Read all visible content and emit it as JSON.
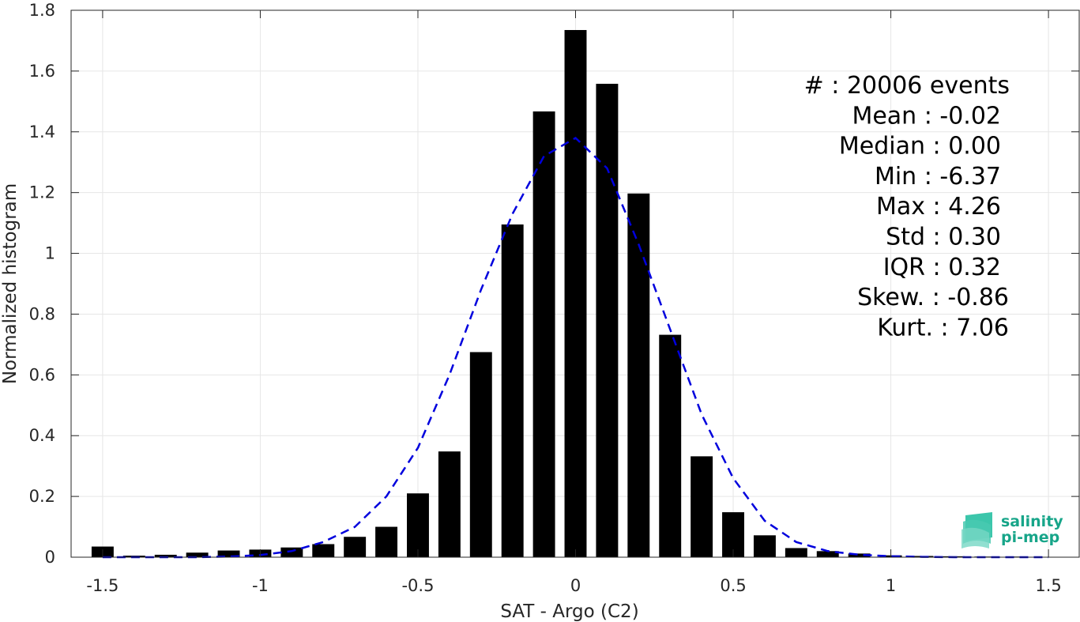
{
  "chart_data": {
    "type": "bar",
    "xlabel": "SAT - Argo (C2)",
    "ylabel": "Normalized histogram",
    "xlim": [
      -1.6,
      1.6
    ],
    "ylim": [
      0,
      1.8
    ],
    "xticks": [
      -1.5,
      -1,
      -0.5,
      0,
      0.5,
      1,
      1.5
    ],
    "xtick_labels": [
      "-1.5",
      "-1",
      "-0.5",
      "0",
      "0.5",
      "1",
      "1.5"
    ],
    "yticks": [
      0,
      0.2,
      0.4,
      0.6,
      0.8,
      1,
      1.2,
      1.4,
      1.6,
      1.8
    ],
    "ytick_labels": [
      "0",
      "0.2",
      "0.4",
      "0.6",
      "0.8",
      "1",
      "1.2",
      "1.4",
      "1.6",
      "1.8"
    ],
    "grid": true,
    "bar_color": "#000000",
    "bar_width": 0.07,
    "bins": [
      -1.5,
      -1.4,
      -1.3,
      -1.2,
      -1.1,
      -1.0,
      -0.9,
      -0.8,
      -0.7,
      -0.6,
      -0.5,
      -0.4,
      -0.3,
      -0.2,
      -0.1,
      0.0,
      0.1,
      0.2,
      0.3,
      0.4,
      0.5,
      0.6,
      0.7,
      0.8,
      0.9,
      1.0,
      1.1,
      1.2,
      1.3,
      1.4,
      1.5
    ],
    "values": [
      0.035,
      0.005,
      0.008,
      0.015,
      0.022,
      0.025,
      0.032,
      0.043,
      0.067,
      0.1,
      0.21,
      0.348,
      0.675,
      1.095,
      1.467,
      1.735,
      1.558,
      1.197,
      0.732,
      0.332,
      0.148,
      0.072,
      0.03,
      0.02,
      0.012,
      0.006,
      0.004,
      0.003,
      0.002,
      0.002,
      0.001
    ],
    "series": [
      {
        "type": "line",
        "style": "dashed",
        "color": "#0000dd",
        "x": [
          -1.5,
          -1.4,
          -1.3,
          -1.2,
          -1.1,
          -1.0,
          -0.9,
          -0.8,
          -0.7,
          -0.6,
          -0.5,
          -0.4,
          -0.3,
          -0.2,
          -0.1,
          0.0,
          0.1,
          0.2,
          0.3,
          0.4,
          0.5,
          0.6,
          0.7,
          0.8,
          0.9,
          1.0,
          1.1,
          1.2,
          1.3,
          1.4,
          1.5
        ],
        "y": [
          0.0,
          0.0,
          0.0,
          0.0,
          0.002,
          0.007,
          0.02,
          0.05,
          0.1,
          0.2,
          0.36,
          0.6,
          0.88,
          1.13,
          1.32,
          1.38,
          1.28,
          1.03,
          0.75,
          0.47,
          0.26,
          0.12,
          0.05,
          0.02,
          0.008,
          0.003,
          0.001,
          0.0,
          0.0,
          0.0,
          0.0
        ]
      }
    ],
    "annotations": [
      "#  : 20006 events",
      "Mean : -0.02",
      "Median : 0.00",
      "Min : -6.37",
      "Max : 4.26",
      "Std : 0.30",
      "IQR : 0.32",
      "Skew. : -0.86",
      "Kurt. : 7.06"
    ]
  },
  "logo": {
    "line1": "salinity",
    "line2": "pi-mep",
    "color": "#17a589"
  }
}
